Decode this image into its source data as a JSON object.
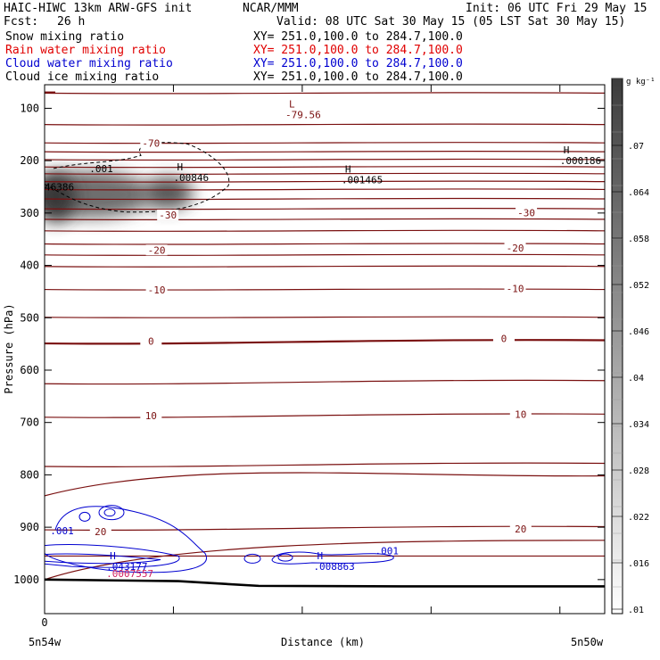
{
  "header": {
    "title_left": "HAIC-HIWC 13km ARW-GFS init",
    "title_center": "NCAR/MMM",
    "init": "Init: 06 UTC Fri 29 May 15",
    "fcst_label": "Fcst:",
    "fcst_value": "26 h",
    "valid": "Valid: 08 UTC Sat 30 May 15 (05 LST Sat 30 May 15)"
  },
  "fields": [
    {
      "name": "Snow mixing ratio",
      "xy": "XY= 251.0,100.0 to 284.7,100.0",
      "color": "#000000"
    },
    {
      "name": "Rain water mixing ratio",
      "xy": "XY= 251.0,100.0 to 284.7,100.0",
      "color": "#e00000"
    },
    {
      "name": "Cloud water mixing ratio",
      "xy": "XY= 251.0,100.0 to 284.7,100.0",
      "color": "#0000d0"
    },
    {
      "name": "Cloud ice mixing ratio",
      "xy": "XY= 251.0,100.0 to 284.7,100.0",
      "color": "#000000"
    }
  ],
  "chart_data": {
    "type": "contour",
    "xlabel": "Distance (km)",
    "ylabel": "Pressure (hPa)",
    "x_ticks": [
      "0"
    ],
    "x_left_label": "5n54w",
    "x_right_label": "5n50w",
    "y_ticks": [
      100,
      200,
      300,
      400,
      500,
      600,
      700,
      800,
      900,
      1000
    ],
    "ylim": [
      1065,
      55
    ],
    "colorbar": {
      "unit": "g kg⁻¹",
      "ticks": [
        ".07",
        ".064",
        ".058",
        ".052",
        ".046",
        ".04",
        ".034",
        ".028",
        ".022",
        ".016",
        ".01"
      ]
    },
    "temperature_contours": {
      "color": "#7a1010",
      "labels": [
        {
          "text": "-70",
          "x": 0.19,
          "p": 170
        },
        {
          "text": "-30",
          "x": 0.22,
          "p": 307
        },
        {
          "text": "-30",
          "x": 0.86,
          "p": 303
        },
        {
          "text": "-20",
          "x": 0.2,
          "p": 374
        },
        {
          "text": "-20",
          "x": 0.84,
          "p": 370
        },
        {
          "text": "-10",
          "x": 0.2,
          "p": 450
        },
        {
          "text": "-10",
          "x": 0.84,
          "p": 448
        },
        {
          "text": "0",
          "x": 0.19,
          "p": 548
        },
        {
          "text": "0",
          "x": 0.82,
          "p": 543
        },
        {
          "text": "10",
          "x": 0.19,
          "p": 690
        },
        {
          "text": "10",
          "x": 0.85,
          "p": 688
        },
        {
          "text": "20",
          "x": 0.1,
          "p": 912
        },
        {
          "text": "20",
          "x": 0.85,
          "p": 907
        }
      ]
    },
    "extrema": [
      {
        "type": "L",
        "value": "-79.56",
        "x": 0.43,
        "p": 105,
        "color": "#7a1010"
      },
      {
        "type": "H",
        "value": ".00846",
        "x": 0.23,
        "p": 225,
        "color": "#000000"
      },
      {
        "type": "H",
        "value": ".001465",
        "x": 0.53,
        "p": 230,
        "color": "#000000"
      },
      {
        "type": "H",
        "value": ".000186",
        "x": 0.92,
        "p": 193,
        "color": "#000000"
      },
      {
        "type": "H",
        "value": ".043177",
        "x": 0.11,
        "p": 968,
        "color": "#0000d0"
      },
      {
        "type": "H",
        "value": ".008863",
        "x": 0.48,
        "p": 968,
        "color": "#0000d0"
      },
      {
        "type": "H",
        "value": ".0007557",
        "x": 0.11,
        "p": 985,
        "color": "#d02060"
      }
    ],
    "contour_labels": [
      {
        "text": ".001",
        "x": 0.08,
        "p": 215,
        "color": "#000000"
      },
      {
        "text": "46386",
        "x": 0.0,
        "p": 250,
        "color": "#000000"
      },
      {
        "text": ".001",
        "x": 0.01,
        "p": 907,
        "color": "#0000d0"
      },
      {
        "text": ".001",
        "x": 0.59,
        "p": 945,
        "color": "#0000d0"
      }
    ]
  }
}
